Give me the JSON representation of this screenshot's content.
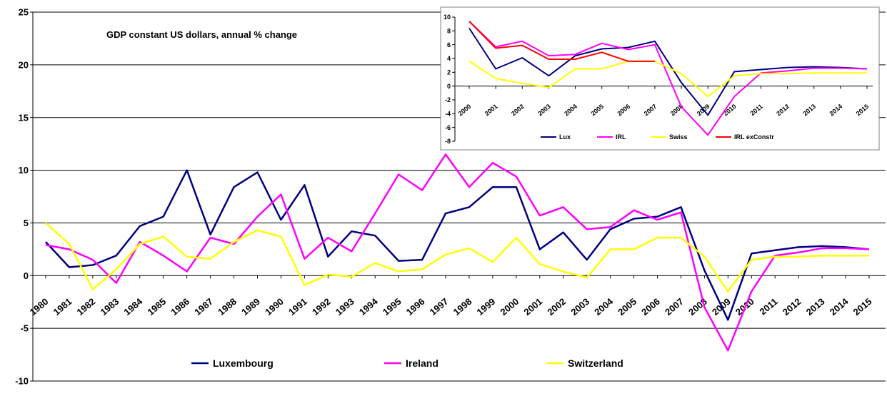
{
  "chart_data": [
    {
      "type": "line",
      "title": "GDP constant US dollars, annual % change",
      "xlabel": "",
      "ylabel": "",
      "ylim": [
        -10,
        25
      ],
      "yticks": [
        -10,
        -5,
        0,
        5,
        10,
        15,
        20,
        25
      ],
      "grid": "horizontal",
      "legend": "bottom",
      "categories": [
        "1980",
        "1981",
        "1982",
        "1983",
        "1984",
        "1985",
        "1986",
        "1987",
        "1988",
        "1989",
        "1990",
        "1991",
        "1992",
        "1993",
        "1994",
        "1995",
        "1996",
        "1997",
        "1998",
        "1999",
        "2000",
        "2001",
        "2002",
        "2003",
        "2004",
        "2005",
        "2006",
        "2007",
        "2008",
        "2009",
        "2010",
        "2011",
        "2012",
        "2013",
        "2014",
        "2015"
      ],
      "series": [
        {
          "name": "Luxembourg",
          "color": "#000080",
          "values": [
            3.2,
            0.8,
            1.0,
            1.9,
            4.7,
            5.6,
            10.0,
            3.9,
            8.4,
            9.8,
            5.3,
            8.6,
            1.8,
            4.2,
            3.8,
            1.4,
            1.5,
            5.9,
            6.5,
            8.4,
            8.4,
            2.5,
            4.1,
            1.5,
            4.4,
            5.4,
            5.6,
            6.5,
            0.5,
            -4.2,
            2.1,
            2.4,
            2.7,
            2.8,
            2.7,
            2.5
          ]
        },
        {
          "name": "Ireland",
          "color": "#ff00ff",
          "values": [
            2.9,
            2.5,
            1.5,
            -0.7,
            3.2,
            1.9,
            0.4,
            3.6,
            3.0,
            5.6,
            7.7,
            1.6,
            3.6,
            2.3,
            5.9,
            9.6,
            8.1,
            11.5,
            8.4,
            10.7,
            9.4,
            5.7,
            6.5,
            4.4,
            4.6,
            6.2,
            5.3,
            6.0,
            -3.0,
            -7.1,
            -1.5,
            1.9,
            2.2,
            2.6,
            2.6,
            2.5
          ]
        },
        {
          "name": "Switzerland",
          "color": "#ffff00",
          "values": [
            5.0,
            3.0,
            -1.3,
            0.6,
            3.0,
            3.7,
            1.8,
            1.6,
            3.2,
            4.3,
            3.7,
            -0.9,
            0.1,
            -0.1,
            1.2,
            0.4,
            0.6,
            2.0,
            2.6,
            1.3,
            3.6,
            1.1,
            0.4,
            -0.2,
            2.5,
            2.5,
            3.6,
            3.6,
            1.8,
            -1.5,
            1.5,
            1.8,
            1.8,
            1.9,
            1.9,
            1.9
          ]
        }
      ]
    },
    {
      "type": "line",
      "title": "",
      "xlabel": "",
      "ylabel": "",
      "ylim": [
        -8,
        10
      ],
      "yticks": [
        -8,
        -6,
        -4,
        -2,
        0,
        2,
        4,
        6,
        8,
        10
      ],
      "grid": "none",
      "legend": "bottom",
      "categories": [
        "2000",
        "2001",
        "2002",
        "2003",
        "2004",
        "2005",
        "2006",
        "2007",
        "2008",
        "2009",
        "2010",
        "2011",
        "2012",
        "2013",
        "2014",
        "2015"
      ],
      "series": [
        {
          "name": "Lux",
          "color": "#000080",
          "values": [
            8.4,
            2.5,
            4.1,
            1.5,
            4.4,
            5.4,
            5.6,
            6.5,
            0.5,
            -4.2,
            2.1,
            2.4,
            2.7,
            2.8,
            2.7,
            2.5
          ]
        },
        {
          "name": "IRL",
          "color": "#ff00ff",
          "values": [
            9.4,
            5.7,
            6.5,
            4.4,
            4.6,
            6.2,
            5.3,
            6.0,
            -3.0,
            -7.1,
            -1.5,
            1.9,
            2.2,
            2.6,
            2.6,
            2.5
          ]
        },
        {
          "name": "Swiss",
          "color": "#ffff00",
          "values": [
            3.6,
            1.1,
            0.4,
            -0.2,
            2.5,
            2.5,
            3.6,
            3.6,
            1.8,
            -1.5,
            1.5,
            1.8,
            1.8,
            1.9,
            1.9,
            1.9
          ]
        },
        {
          "name": "IRL exConstr",
          "color": "#ff0000",
          "values": [
            9.4,
            5.5,
            5.9,
            3.9,
            3.9,
            4.9,
            3.6,
            3.6,
            null,
            null,
            null,
            null,
            null,
            null,
            null,
            null
          ]
        }
      ]
    }
  ]
}
